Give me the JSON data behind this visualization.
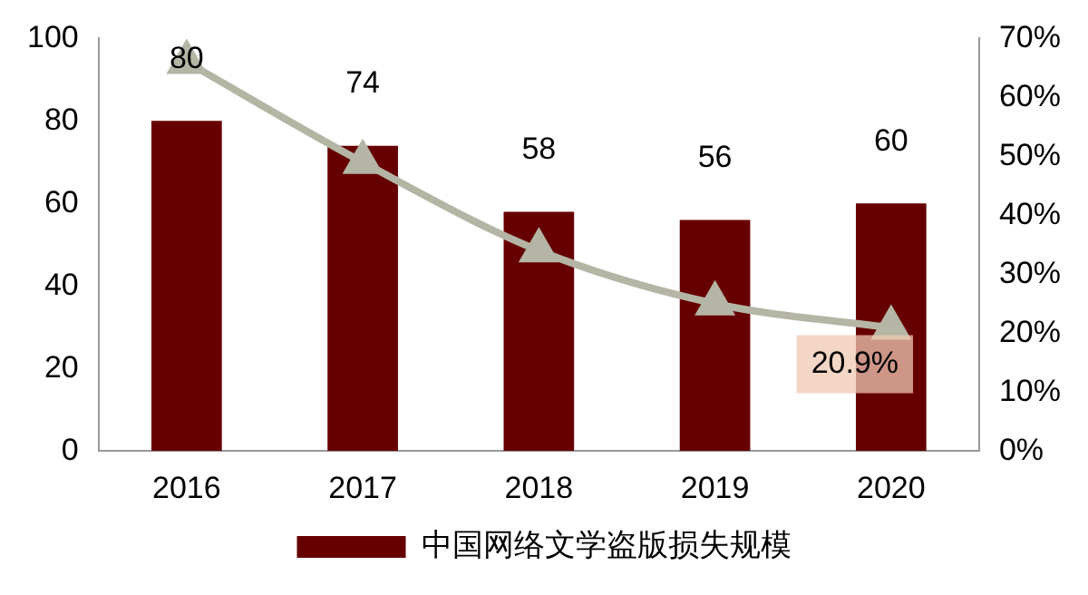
{
  "chart_data": {
    "type": "bar",
    "categories": [
      "2016",
      "2017",
      "2018",
      "2019",
      "2020"
    ],
    "series": [
      {
        "name": "中国网络文学盗版损失规模",
        "color": "#660000",
        "values": [
          80,
          74,
          58,
          56,
          60
        ],
        "value_labels": [
          "80",
          "74",
          "58",
          "56",
          "60"
        ]
      },
      {
        "type": "line",
        "axis": "y2",
        "color": "#b5b5a5",
        "values": [
          66,
          49,
          34,
          25,
          20.9
        ],
        "value_labels": [
          null,
          null,
          null,
          null,
          "20.9%"
        ],
        "marker": "triangle"
      }
    ],
    "ylim": [
      0,
      100
    ],
    "yticks": [
      0,
      20,
      40,
      60,
      80,
      100
    ],
    "y2lim": [
      0,
      70
    ],
    "y2ticks": [
      {
        "value": 0,
        "label": "0%"
      },
      {
        "value": 10,
        "label": "10%"
      },
      {
        "value": 20,
        "label": "20%"
      },
      {
        "value": 30,
        "label": "30%"
      },
      {
        "value": 40,
        "label": "40%"
      },
      {
        "value": 50,
        "label": "50%"
      },
      {
        "value": 60,
        "label": "60%"
      },
      {
        "value": 70,
        "label": "70%"
      }
    ],
    "grid": false,
    "legend": "bottom"
  }
}
